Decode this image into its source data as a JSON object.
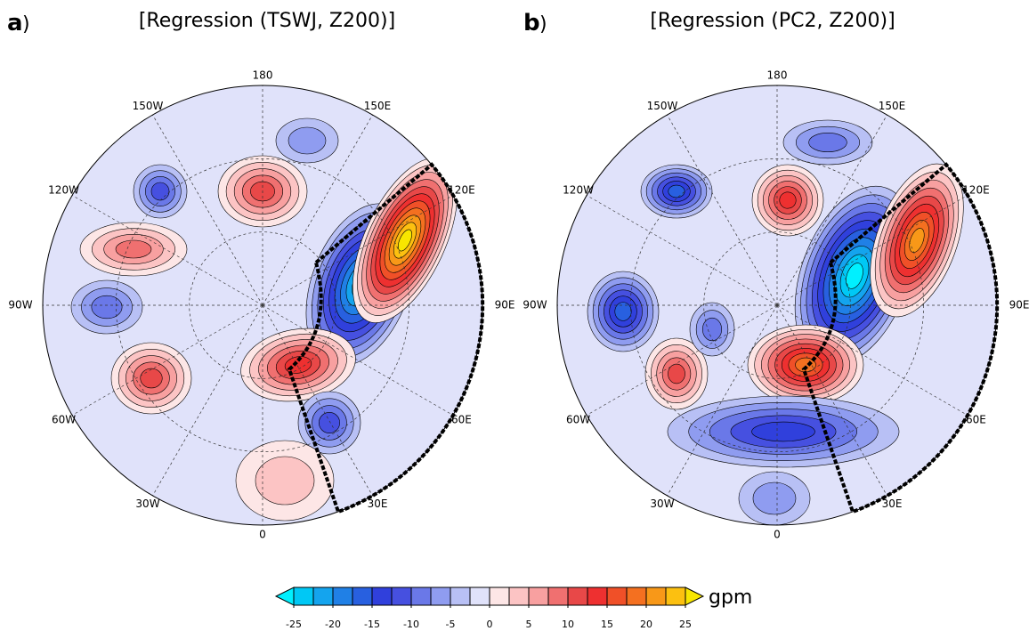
{
  "panels": [
    {
      "label": "a",
      "label_suffix": ")",
      "title": "[Regression (TSWJ, Z200)]",
      "lon_labels": [
        "180",
        "150E",
        "120E",
        "90E",
        "60E",
        "30E",
        "0",
        "30W",
        "60W",
        "90W",
        "120W",
        "150W"
      ]
    },
    {
      "label": "b",
      "label_suffix": ")",
      "title": "[Regression (PC2, Z200)]",
      "lon_labels": [
        "180",
        "150E",
        "120E",
        "90E",
        "60E",
        "30E",
        "0",
        "30W",
        "60W",
        "90W",
        "120W",
        "150W"
      ]
    }
  ],
  "colorbar": {
    "unit": "gpm",
    "ticks": [
      -25,
      -20,
      -15,
      -10,
      -5,
      0,
      5,
      10,
      15,
      20,
      25
    ],
    "colors": [
      "#00f0ff",
      "#00c8f5",
      "#14a4ee",
      "#2080e6",
      "#2860e0",
      "#3040dc",
      "#4650e0",
      "#6a78e8",
      "#8f9cf0",
      "#b8c0f5",
      "#e0e2fa",
      "#fde6e6",
      "#fcc4c4",
      "#f8a0a0",
      "#f07070",
      "#e84848",
      "#ee3030",
      "#f05028",
      "#f47020",
      "#f89818",
      "#fcc010",
      "#f8e600"
    ]
  }
}
